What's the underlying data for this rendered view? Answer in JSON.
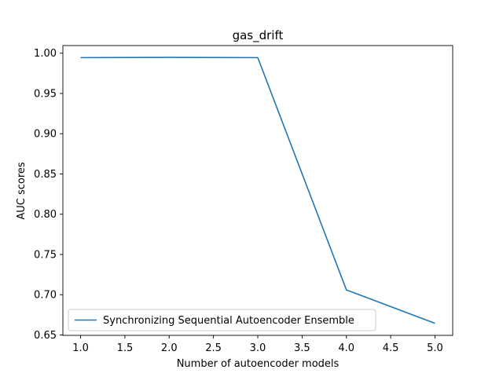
{
  "chart_data": {
    "type": "line",
    "title": "gas_drift",
    "xlabel": "Number of autoencoder models",
    "ylabel": "AUC scores",
    "x": [
      1.0,
      2.0,
      3.0,
      4.0,
      5.0
    ],
    "series": [
      {
        "name": "Synchronizing Sequential Autoencoder Ensemble",
        "values": [
          0.9945,
          0.9948,
          0.9945,
          0.706,
          0.6645
        ],
        "color": "#1f77b4"
      }
    ],
    "xlim": [
      0.8,
      5.2
    ],
    "ylim": [
      0.6495,
      1.0095
    ],
    "xticks": [
      1.0,
      1.5,
      2.0,
      2.5,
      3.0,
      3.5,
      4.0,
      4.5,
      5.0
    ],
    "xtick_labels": [
      "1.0",
      "1.5",
      "2.0",
      "2.5",
      "3.0",
      "3.5",
      "4.0",
      "4.5",
      "5.0"
    ],
    "yticks": [
      0.65,
      0.7,
      0.75,
      0.8,
      0.85,
      0.9,
      0.95,
      1.0
    ],
    "ytick_labels": [
      "0.65",
      "0.70",
      "0.75",
      "0.80",
      "0.85",
      "0.90",
      "0.95",
      "1.00"
    ],
    "grid": false,
    "legend_position": "lower-left"
  }
}
